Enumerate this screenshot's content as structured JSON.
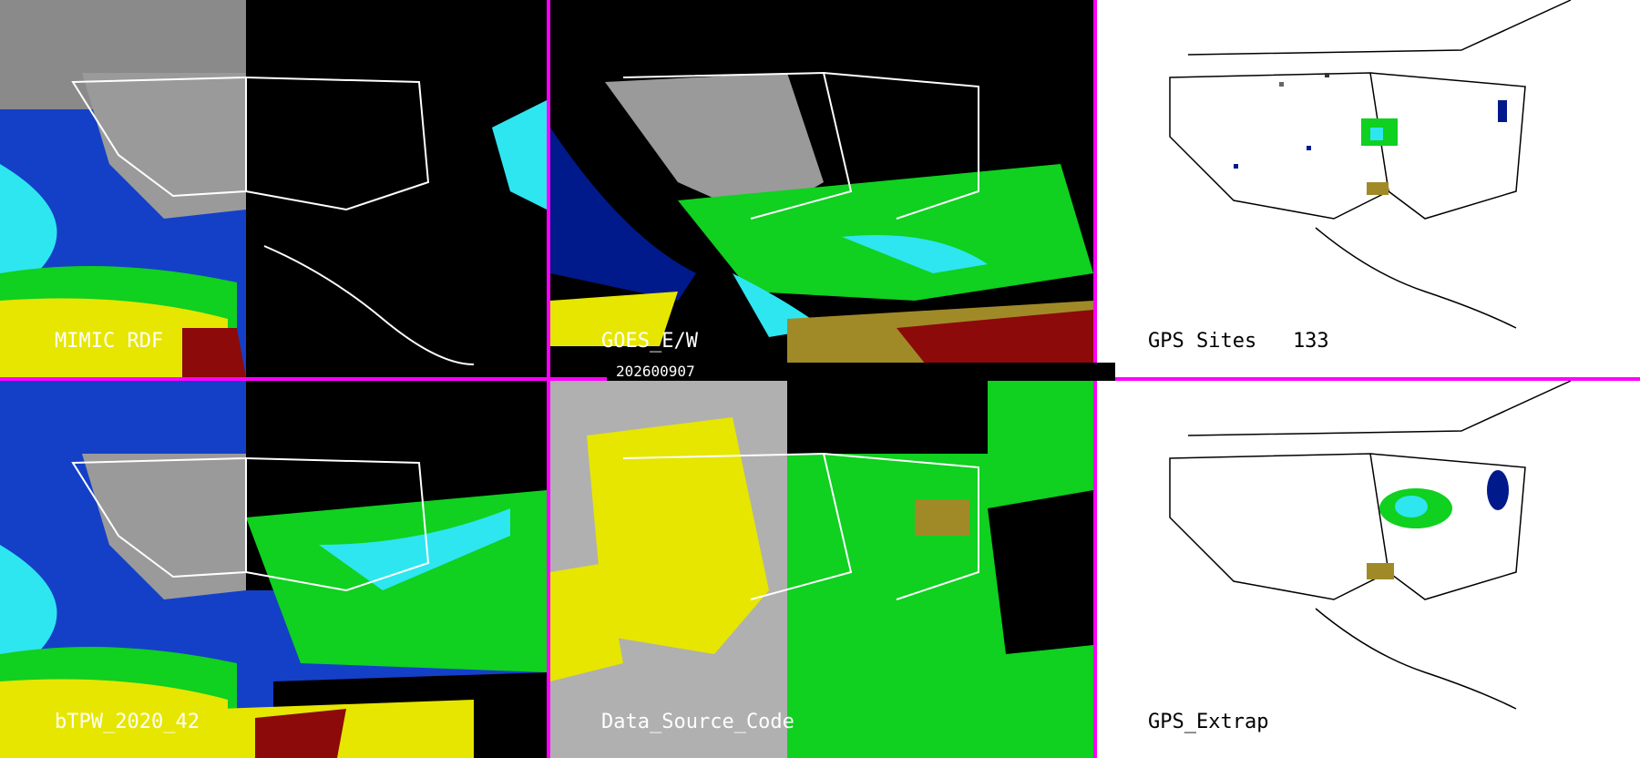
{
  "date": "202600907",
  "colors": {
    "divider": "#ff00ff",
    "ocean_black": "#000000",
    "cloud_gray": "#9a9a9a",
    "dry_blue": "#001a8c",
    "mid_blue": "#1440c8",
    "cyan": "#2ee6f0",
    "green": "#10d020",
    "yellow": "#e6e600",
    "olive": "#a08a28",
    "dark_red": "#8c0a0a",
    "coast_white": "#ffffff",
    "coast_black": "#000000"
  },
  "panels": [
    {
      "id": "mimic",
      "label": "MIMIC RDF",
      "bg": "dark"
    },
    {
      "id": "goes",
      "label": "GOES_E/W",
      "bg": "dark"
    },
    {
      "id": "gps",
      "label": "GPS Sites   133",
      "bg": "light"
    },
    {
      "id": "btpw",
      "label": "bTPW_2020_42",
      "bg": "dark"
    },
    {
      "id": "dsc",
      "label": "Data_Source_Code",
      "bg": "dark"
    },
    {
      "id": "gpsx",
      "label": "GPS_Extrap",
      "bg": "light"
    }
  ]
}
